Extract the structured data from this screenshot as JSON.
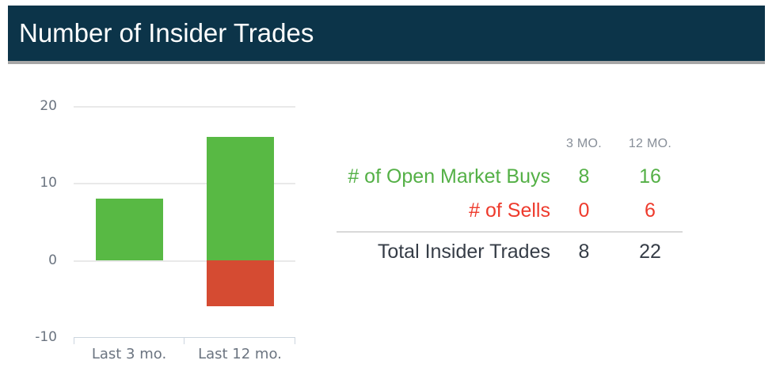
{
  "header": {
    "title": "Number of Insider Trades"
  },
  "chart_data": {
    "type": "bar",
    "stacked": true,
    "title": "Number of Insider Trades",
    "categories": [
      "Last 3 mo.",
      "Last 12 mo."
    ],
    "series": [
      {
        "name": "Open Market Buys",
        "values": [
          8,
          16
        ],
        "color": "#58b944"
      },
      {
        "name": "Sells",
        "values": [
          0,
          -6
        ],
        "color": "#d54b32"
      }
    ],
    "ylim": [
      -10,
      20
    ],
    "yticks": [
      20,
      10,
      0,
      -10
    ],
    "grid": true,
    "legend": false,
    "xlabel": "",
    "ylabel": ""
  },
  "table": {
    "columns": [
      "3 MO.",
      "12 MO."
    ],
    "rows": [
      {
        "label": "# of Open Market Buys",
        "values": [
          "8",
          "16"
        ],
        "tone": "green"
      },
      {
        "label": "# of Sells",
        "values": [
          "0",
          "6"
        ],
        "tone": "red"
      },
      {
        "label": "Total Insider Trades",
        "values": [
          "8",
          "22"
        ],
        "tone": "dark"
      }
    ]
  },
  "colors": {
    "header_bg": "#0c3449",
    "header_border": "#a7a7a7",
    "bar_green": "#58b944",
    "bar_red": "#d54b32",
    "text_green": "#54b046",
    "text_red": "#ee3a2c",
    "text_dark": "#363d47",
    "column_header_gray": "#878e98",
    "axis_label_gray": "#6b7480",
    "gridline": "#e9e9e9",
    "axis_line": "#ccd5df",
    "divider": "#d9d9d9"
  }
}
